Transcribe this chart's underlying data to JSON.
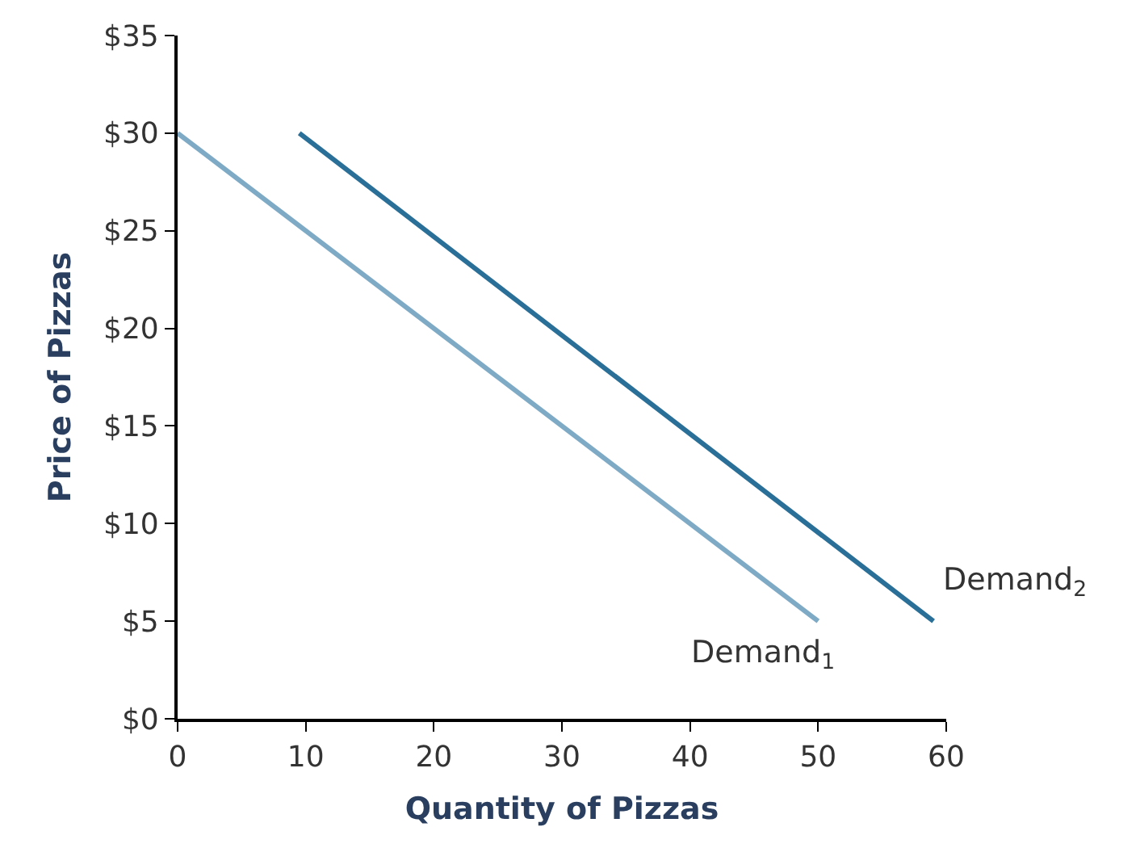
{
  "chart_data": {
    "type": "line",
    "xlabel": "Quantity of Pizzas",
    "ylabel": "Price of Pizzas",
    "series": [
      {
        "name": "Demand$_{1}$",
        "color": "#7eaac6",
        "x": [
          0,
          50
        ],
        "values": [
          30,
          5
        ]
      },
      {
        "name": "Demand$_{2}$",
        "color": "#2a6f97",
        "x": [
          9.5,
          59
        ],
        "values": [
          30,
          5
        ]
      }
    ],
    "xlim": [
      0,
      60
    ],
    "xticks": [
      0,
      10,
      20,
      30,
      40,
      50,
      60
    ],
    "ylim": [
      0,
      35
    ],
    "yticks": [
      {
        "value": 0,
        "label": "$0"
      },
      {
        "value": 5,
        "label": "$5"
      },
      {
        "value": 10,
        "label": "$10"
      },
      {
        "value": 15,
        "label": "$15"
      },
      {
        "value": 20,
        "label": "$20"
      },
      {
        "value": 25,
        "label": "$25"
      },
      {
        "value": 30,
        "label": "$30"
      },
      {
        "value": 35,
        "label": "$35"
      }
    ],
    "legend": false,
    "marker": "none",
    "line_style": "solid"
  }
}
